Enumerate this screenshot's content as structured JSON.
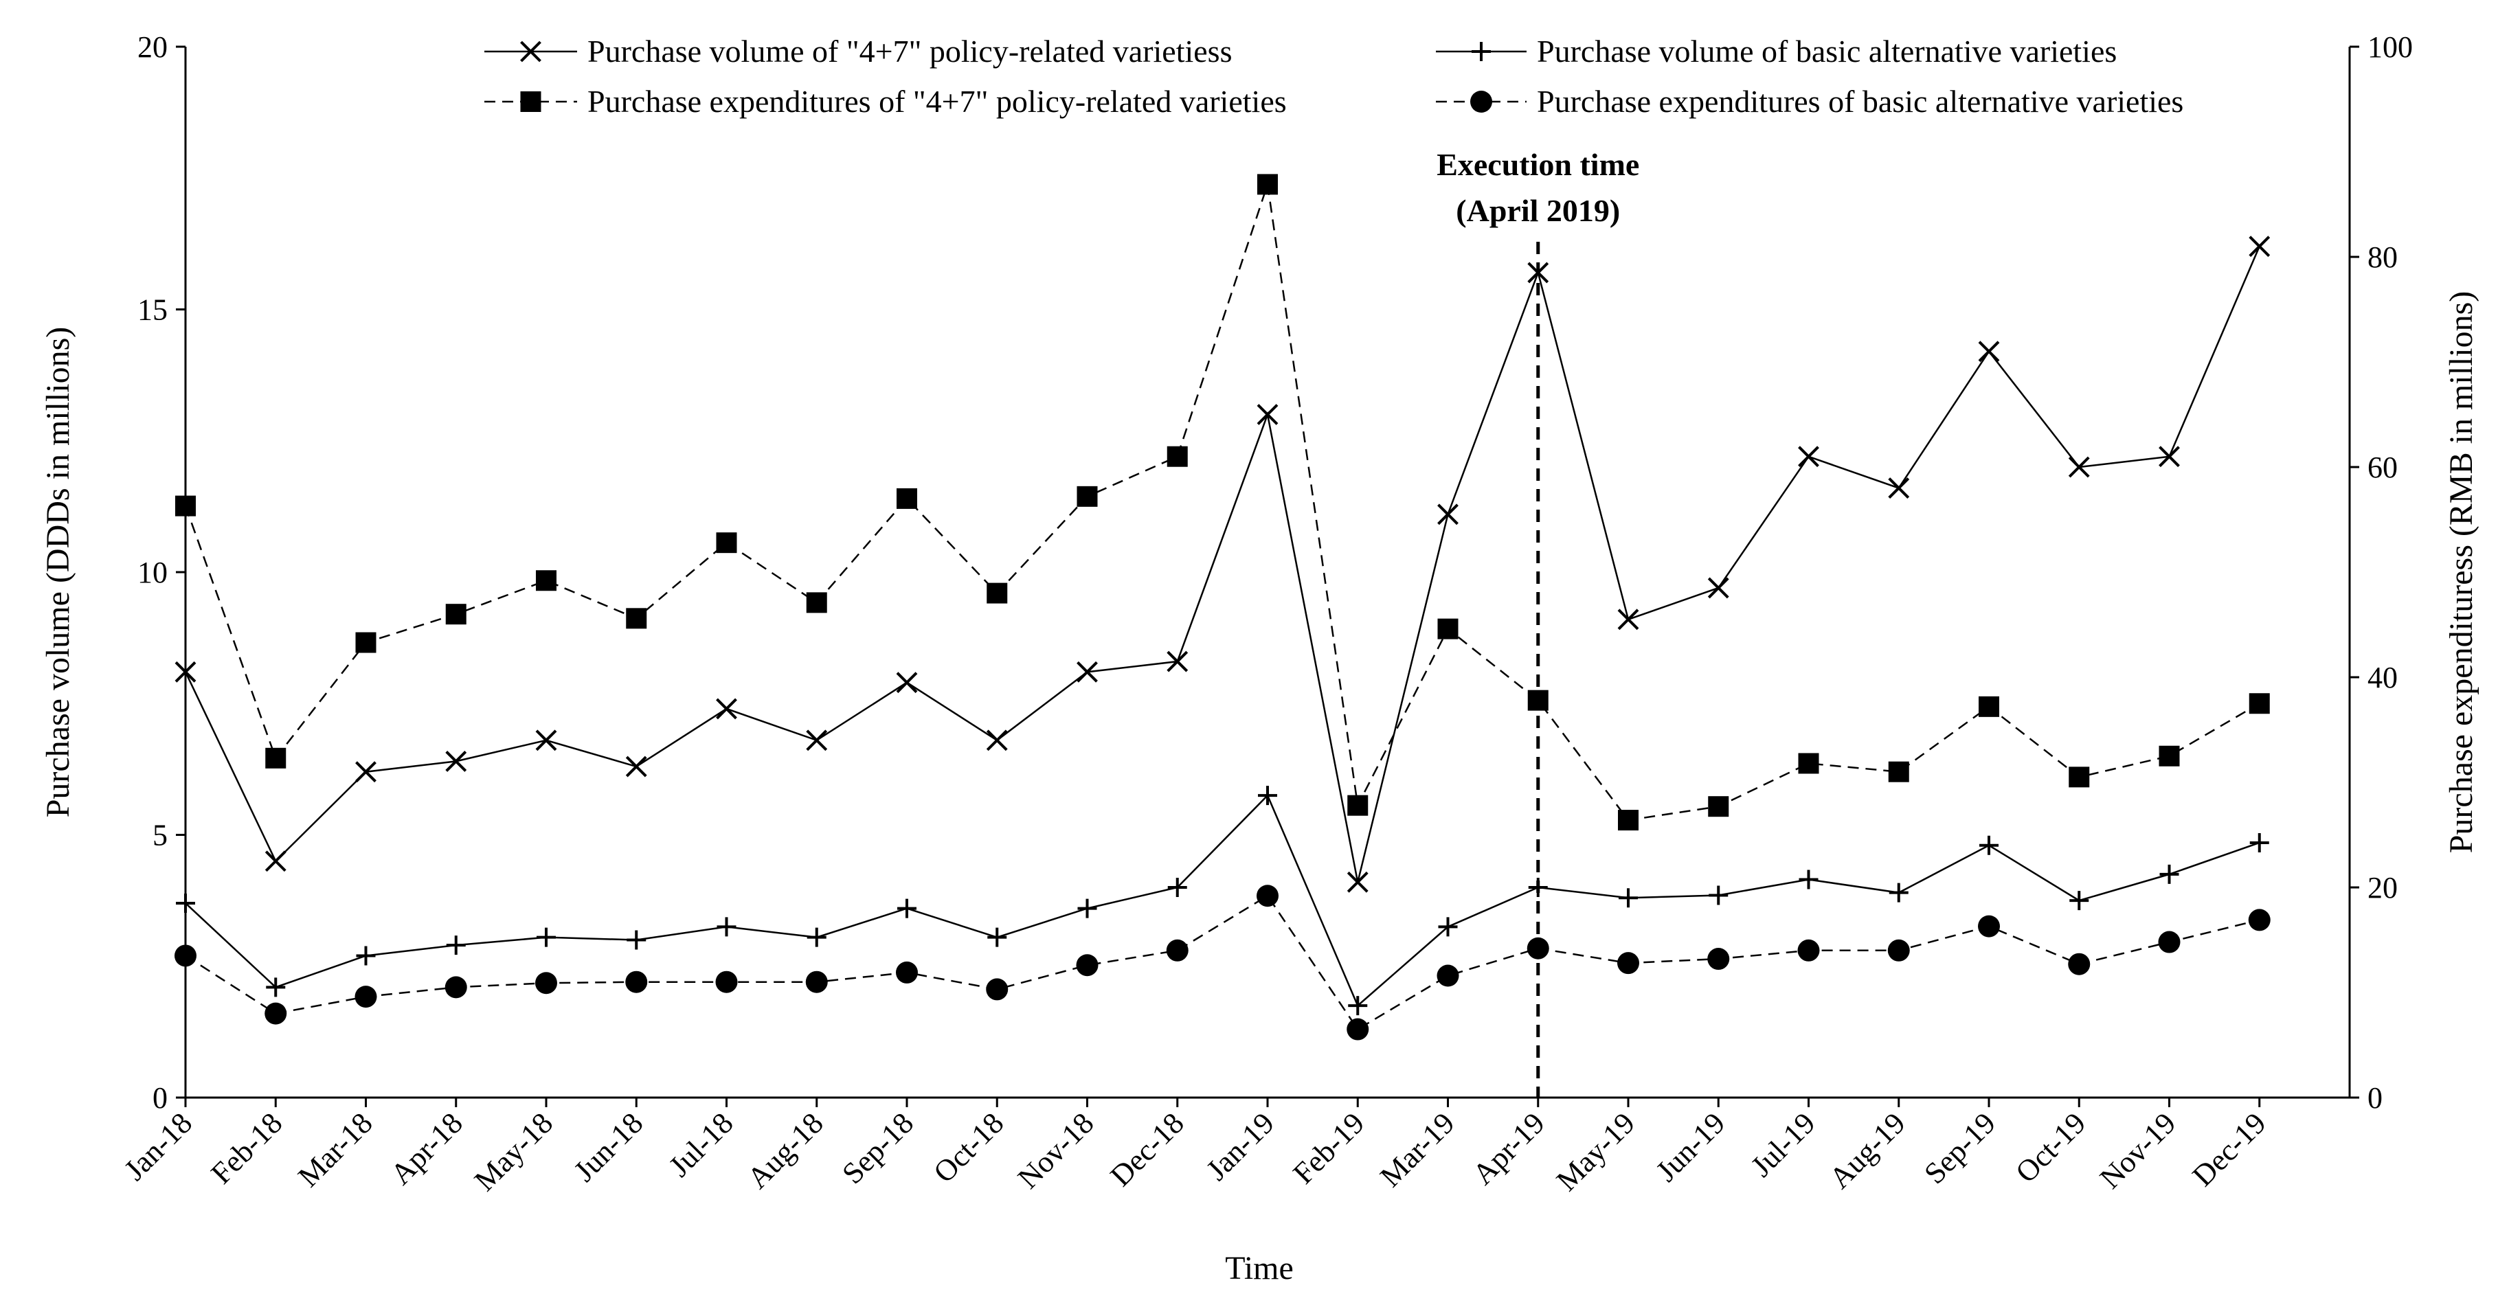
{
  "chart_data": {
    "type": "line",
    "categories": [
      "Jan-18",
      "Feb-18",
      "Mar-18",
      "Apr-18",
      "May-18",
      "Jun-18",
      "Jul-18",
      "Aug-18",
      "Sep-18",
      "Oct-18",
      "Nov-18",
      "Dec-18",
      "Jan-19",
      "Feb-19",
      "Mar-19",
      "Apr-19",
      "May-19",
      "Jun-19",
      "Jul-19",
      "Aug-19",
      "Sep-19",
      "Oct-19",
      "Nov-19",
      "Dec-19"
    ],
    "xlabel": "Time",
    "ylabel_left": "Purchase volume  (DDDs in millions)",
    "ylabel_right": "Purchase expendituress  (RMB in millions)",
    "y_left": {
      "min": 0,
      "max": 20,
      "ticks": [
        0,
        5,
        10,
        15,
        20
      ]
    },
    "y_right": {
      "min": 0,
      "max": 100,
      "ticks": [
        0,
        20,
        40,
        60,
        80,
        100
      ]
    },
    "series": [
      {
        "name": "Purchase volume of \"4+7\" policy-related varietiess",
        "axis": "left",
        "marker": "x",
        "dash": "solid",
        "values": [
          8.1,
          4.5,
          6.2,
          6.4,
          6.8,
          6.3,
          7.4,
          6.8,
          7.9,
          6.8,
          8.1,
          8.3,
          13.0,
          4.1,
          11.1,
          15.7,
          9.1,
          9.7,
          12.2,
          11.6,
          14.2,
          12.0,
          12.2,
          16.2
        ]
      },
      {
        "name": "Purchase volume of basic alternative varieties",
        "axis": "left",
        "marker": "plus",
        "dash": "solid",
        "values": [
          3.7,
          2.1,
          2.7,
          2.9,
          3.05,
          3.0,
          3.25,
          3.05,
          3.6,
          3.05,
          3.6,
          4.0,
          5.75,
          1.75,
          3.25,
          4.0,
          3.8,
          3.85,
          4.15,
          3.9,
          4.8,
          3.75,
          4.25,
          4.85
        ]
      },
      {
        "name": "Purchase expenditures of \"4+7\" policy-related varieties",
        "axis": "right",
        "marker": "square",
        "dash": "dashed",
        "values": [
          56.3,
          32.3,
          43.3,
          46.0,
          49.2,
          45.6,
          52.8,
          47.1,
          57.0,
          48.0,
          57.2,
          61.0,
          86.9,
          27.8,
          44.6,
          37.8,
          26.4,
          27.7,
          31.8,
          31.0,
          37.2,
          30.5,
          32.5,
          37.5
        ]
      },
      {
        "name": "Purchase expenditures of basic alternative varieties",
        "axis": "right",
        "marker": "circle",
        "dash": "dashed",
        "values": [
          13.5,
          8.0,
          9.6,
          10.5,
          10.9,
          11.0,
          11.0,
          11.0,
          11.9,
          10.3,
          12.6,
          14.0,
          19.2,
          6.5,
          11.6,
          14.2,
          12.8,
          13.2,
          14.0,
          14.0,
          16.3,
          12.7,
          14.8,
          16.9
        ]
      }
    ],
    "annotation": {
      "category": "Apr-19",
      "line1": "Execution time",
      "line2": "(April 2019)"
    },
    "legend_position": "top"
  }
}
